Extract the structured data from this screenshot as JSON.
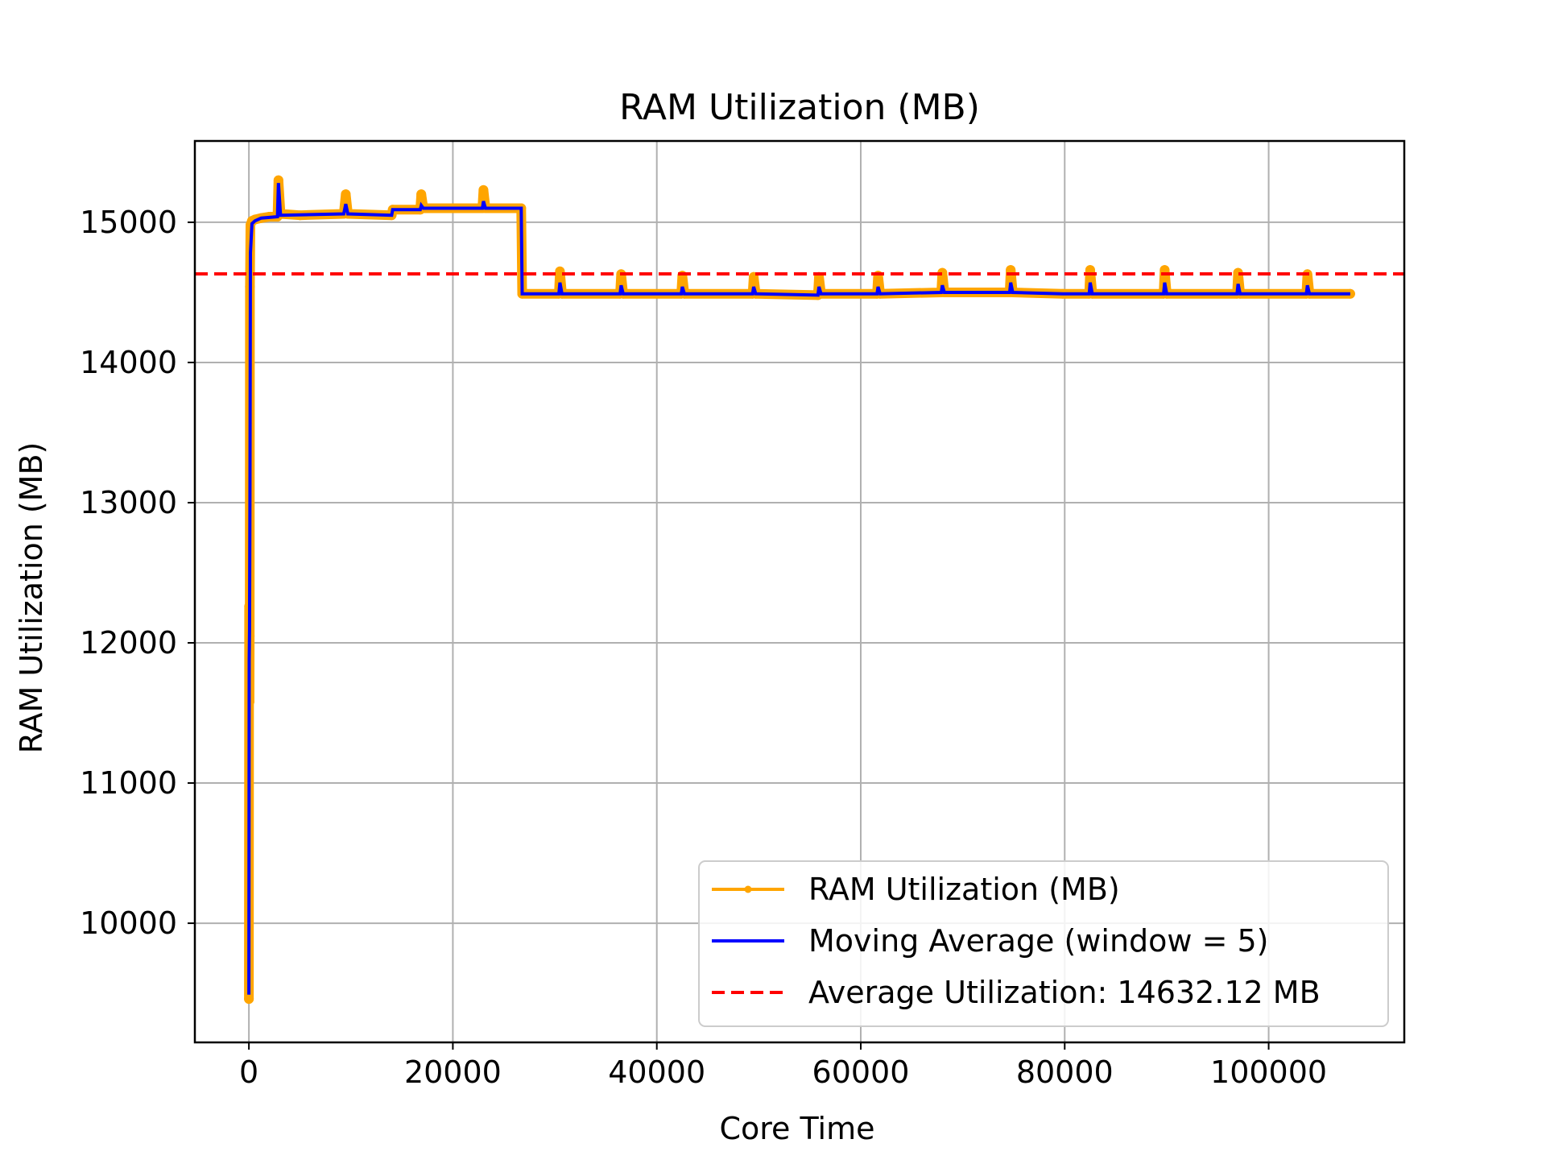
{
  "chart_data": {
    "type": "line",
    "title": "RAM Utilization (MB)",
    "xlabel": "Core Time",
    "ylabel": "RAM Utilization (MB)",
    "xlim": [
      -5300,
      113300
    ],
    "ylim": [
      9150,
      15580
    ],
    "xticks": [
      0,
      20000,
      40000,
      60000,
      80000,
      100000
    ],
    "yticks": [
      10000,
      11000,
      12000,
      13000,
      14000,
      15000
    ],
    "grid": true,
    "legend_position": "lower-right",
    "colors": {
      "raw": "#FFA500",
      "ma": "#0000FF",
      "avg": "#FF0000",
      "grid": "#B0B0B0"
    },
    "series": [
      {
        "name": "RAM Utilization (MB)",
        "style": "line-with-markers",
        "points": [
          [
            0,
            9460
          ],
          [
            20,
            12260
          ],
          [
            40,
            12080
          ],
          [
            60,
            11580
          ],
          [
            80,
            12050
          ],
          [
            100,
            14540
          ],
          [
            150,
            14980
          ],
          [
            300,
            15010
          ],
          [
            600,
            15020
          ],
          [
            1200,
            15030
          ],
          [
            2000,
            15040
          ],
          [
            2800,
            15040
          ],
          [
            2900,
            15300
          ],
          [
            3100,
            15060
          ],
          [
            5000,
            15050
          ],
          [
            9300,
            15060
          ],
          [
            9500,
            15200
          ],
          [
            9700,
            15060
          ],
          [
            14000,
            15050
          ],
          [
            14100,
            15090
          ],
          [
            16800,
            15090
          ],
          [
            16900,
            15200
          ],
          [
            17100,
            15100
          ],
          [
            22900,
            15100
          ],
          [
            23000,
            15230
          ],
          [
            23200,
            15100
          ],
          [
            26700,
            15100
          ],
          [
            26800,
            14490
          ],
          [
            30400,
            14490
          ],
          [
            30500,
            14650
          ],
          [
            30700,
            14490
          ],
          [
            36400,
            14490
          ],
          [
            36500,
            14630
          ],
          [
            36700,
            14490
          ],
          [
            42400,
            14490
          ],
          [
            42500,
            14620
          ],
          [
            42700,
            14490
          ],
          [
            49400,
            14490
          ],
          [
            49500,
            14610
          ],
          [
            49700,
            14490
          ],
          [
            55800,
            14480
          ],
          [
            55900,
            14610
          ],
          [
            56100,
            14490
          ],
          [
            61600,
            14490
          ],
          [
            61700,
            14620
          ],
          [
            61900,
            14490
          ],
          [
            67900,
            14500
          ],
          [
            68000,
            14640
          ],
          [
            68200,
            14500
          ],
          [
            74600,
            14500
          ],
          [
            74700,
            14660
          ],
          [
            74900,
            14500
          ],
          [
            79800,
            14490
          ],
          [
            82400,
            14490
          ],
          [
            82500,
            14660
          ],
          [
            82700,
            14490
          ],
          [
            89700,
            14490
          ],
          [
            89800,
            14660
          ],
          [
            90000,
            14490
          ],
          [
            96900,
            14490
          ],
          [
            97000,
            14640
          ],
          [
            97200,
            14490
          ],
          [
            103700,
            14490
          ],
          [
            103800,
            14630
          ],
          [
            104000,
            14490
          ],
          [
            108000,
            14490
          ]
        ]
      },
      {
        "name": "Moving Average (window = 5)",
        "style": "line",
        "points": [
          [
            0,
            9490
          ],
          [
            30,
            11880
          ],
          [
            60,
            12090
          ],
          [
            100,
            13030
          ],
          [
            150,
            14780
          ],
          [
            300,
            14990
          ],
          [
            600,
            15010
          ],
          [
            1200,
            15030
          ],
          [
            2800,
            15040
          ],
          [
            2900,
            15280
          ],
          [
            3100,
            15050
          ],
          [
            9300,
            15060
          ],
          [
            9500,
            15130
          ],
          [
            9700,
            15060
          ],
          [
            14000,
            15050
          ],
          [
            14100,
            15090
          ],
          [
            16800,
            15090
          ],
          [
            16900,
            15120
          ],
          [
            17100,
            15100
          ],
          [
            22900,
            15100
          ],
          [
            23000,
            15150
          ],
          [
            23200,
            15100
          ],
          [
            26700,
            15100
          ],
          [
            26800,
            14490
          ],
          [
            30400,
            14490
          ],
          [
            30500,
            14570
          ],
          [
            30700,
            14490
          ],
          [
            36400,
            14490
          ],
          [
            36500,
            14550
          ],
          [
            36700,
            14490
          ],
          [
            42400,
            14490
          ],
          [
            42500,
            14540
          ],
          [
            42700,
            14490
          ],
          [
            49400,
            14490
          ],
          [
            49500,
            14540
          ],
          [
            49700,
            14490
          ],
          [
            55800,
            14480
          ],
          [
            55900,
            14540
          ],
          [
            56100,
            14490
          ],
          [
            61600,
            14490
          ],
          [
            61700,
            14540
          ],
          [
            61900,
            14490
          ],
          [
            67900,
            14500
          ],
          [
            68000,
            14550
          ],
          [
            68200,
            14500
          ],
          [
            74600,
            14500
          ],
          [
            74700,
            14570
          ],
          [
            74900,
            14500
          ],
          [
            79800,
            14490
          ],
          [
            82400,
            14490
          ],
          [
            82500,
            14570
          ],
          [
            82700,
            14490
          ],
          [
            89700,
            14490
          ],
          [
            89800,
            14570
          ],
          [
            90000,
            14490
          ],
          [
            96900,
            14490
          ],
          [
            97000,
            14560
          ],
          [
            97200,
            14490
          ],
          [
            103700,
            14490
          ],
          [
            103800,
            14550
          ],
          [
            104000,
            14490
          ],
          [
            108000,
            14490
          ]
        ]
      },
      {
        "name": "Average Utilization: 14632.12 MB",
        "style": "dashed-horizontal",
        "value": 14632.12
      }
    ]
  }
}
